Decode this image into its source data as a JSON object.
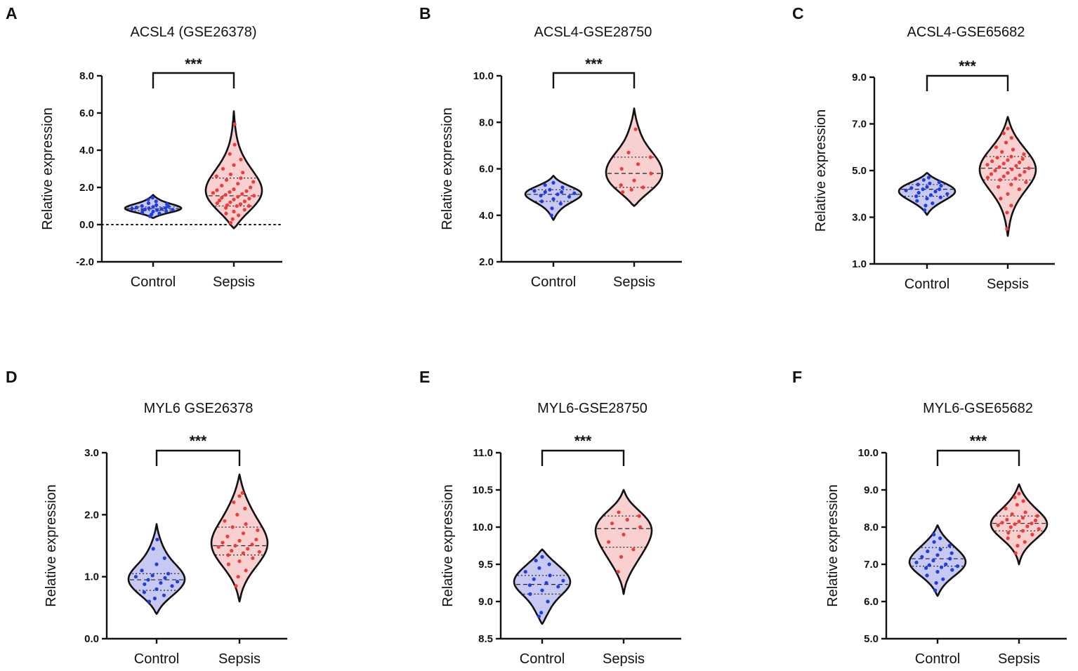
{
  "figure": {
    "panel_count": 6
  },
  "chart_data": [
    {
      "type": "violin",
      "panel": "A",
      "title": "ACSL4 (GSE26378)",
      "ylabel": "Relative expression",
      "ylim": [
        -2.0,
        8.0
      ],
      "yticks": [
        "-2.0",
        "0.0",
        "2.0",
        "4.0",
        "6.0",
        "8.0"
      ],
      "reference_line": 0.0,
      "categories": [
        "Control",
        "Sepsis"
      ],
      "significance": "***",
      "series": [
        {
          "name": "Control",
          "color": "#1f3de0",
          "fill": "#c7c9f2",
          "min": 0.35,
          "max": 1.6,
          "median": 0.85,
          "q1": 0.75,
          "q3": 0.95,
          "points": [
            0.45,
            0.55,
            0.6,
            0.65,
            0.7,
            0.72,
            0.75,
            0.78,
            0.8,
            0.82,
            0.84,
            0.86,
            0.88,
            0.9,
            0.92,
            0.95,
            0.98,
            1.0,
            1.05,
            1.1,
            1.15,
            1.25,
            1.35,
            1.45
          ]
        },
        {
          "name": "Sepsis",
          "color": "#ee3b3b",
          "fill": "#f9d0d0",
          "min": -0.2,
          "max": 6.1,
          "median": 1.55,
          "q1": 1.0,
          "q3": 2.5,
          "points": [
            0.1,
            0.3,
            0.5,
            0.6,
            0.7,
            0.8,
            0.9,
            1.0,
            1.0,
            1.05,
            1.1,
            1.15,
            1.2,
            1.25,
            1.3,
            1.35,
            1.4,
            1.45,
            1.5,
            1.55,
            1.6,
            1.65,
            1.7,
            1.75,
            1.8,
            1.85,
            1.9,
            2.0,
            2.1,
            2.2,
            2.3,
            2.4,
            2.5,
            2.6,
            2.7,
            2.8,
            3.0,
            3.2,
            3.5,
            3.8,
            4.3,
            5.4
          ]
        }
      ]
    },
    {
      "type": "violin",
      "panel": "B",
      "title": "ACSL4-GSE28750",
      "ylabel": "Relative expression",
      "ylim": [
        2.0,
        10.0
      ],
      "yticks": [
        "2.0",
        "4.0",
        "6.0",
        "8.0",
        "10.0"
      ],
      "categories": [
        "Control",
        "Sepsis"
      ],
      "significance": "***",
      "series": [
        {
          "name": "Control",
          "color": "#1f3de0",
          "fill": "#c7c9f2",
          "min": 3.8,
          "max": 5.7,
          "median": 4.9,
          "q1": 4.6,
          "q3": 5.1,
          "points": [
            4.0,
            4.3,
            4.5,
            4.6,
            4.7,
            4.8,
            4.85,
            4.9,
            4.95,
            5.0,
            5.0,
            5.05,
            5.1,
            5.2,
            5.3,
            5.4
          ]
        },
        {
          "name": "Sepsis",
          "color": "#ee3b3b",
          "fill": "#f9d0d0",
          "min": 4.4,
          "max": 8.6,
          "median": 5.8,
          "q1": 5.2,
          "q3": 6.5,
          "points": [
            5.0,
            5.1,
            5.2,
            5.3,
            5.5,
            5.8,
            6.0,
            6.2,
            6.5,
            6.7,
            7.7
          ]
        }
      ]
    },
    {
      "type": "violin",
      "panel": "C",
      "title": "ACSL4-GSE65682",
      "ylabel": "Relative expression",
      "ylim": [
        1.0,
        9.0
      ],
      "yticks": [
        "1.0",
        "3.0",
        "5.0",
        "7.0",
        "9.0"
      ],
      "categories": [
        "Control",
        "Sepsis"
      ],
      "significance": "***",
      "series": [
        {
          "name": "Control",
          "color": "#1f3de0",
          "fill": "#c7c9f2",
          "min": 3.1,
          "max": 4.9,
          "median": 4.2,
          "q1": 3.9,
          "q3": 4.4,
          "points": [
            3.3,
            3.5,
            3.6,
            3.7,
            3.8,
            3.85,
            3.9,
            3.95,
            4.0,
            4.05,
            4.1,
            4.15,
            4.2,
            4.2,
            4.25,
            4.3,
            4.35,
            4.4,
            4.45,
            4.5,
            4.6,
            4.7
          ]
        },
        {
          "name": "Sepsis",
          "color": "#ee3b3b",
          "fill": "#f9d0d0",
          "min": 2.2,
          "max": 7.3,
          "median": 5.1,
          "q1": 4.6,
          "q3": 5.6,
          "points": [
            2.5,
            3.2,
            3.5,
            3.8,
            4.0,
            4.2,
            4.3,
            4.4,
            4.5,
            4.6,
            4.65,
            4.7,
            4.75,
            4.8,
            4.85,
            4.9,
            4.95,
            5.0,
            5.05,
            5.1,
            5.15,
            5.2,
            5.25,
            5.3,
            5.35,
            5.4,
            5.45,
            5.5,
            5.55,
            5.6,
            5.7,
            5.8,
            5.9,
            6.0,
            6.2,
            6.4,
            6.6,
            6.8
          ]
        }
      ]
    },
    {
      "type": "violin",
      "panel": "D",
      "title": "MYL6 GSE26378",
      "ylabel": "Relative expression",
      "ylim": [
        0.0,
        3.0
      ],
      "yticks": [
        "0.0",
        "1.0",
        "2.0",
        "3.0"
      ],
      "categories": [
        "Control",
        "Sepsis"
      ],
      "significance": "***",
      "series": [
        {
          "name": "Control",
          "color": "#1f3de0",
          "fill": "#c7c9f2",
          "min": 0.4,
          "max": 1.85,
          "median": 0.95,
          "q1": 0.78,
          "q3": 1.05,
          "points": [
            0.6,
            0.65,
            0.7,
            0.75,
            0.8,
            0.85,
            0.88,
            0.9,
            0.92,
            0.95,
            0.98,
            1.0,
            1.02,
            1.05,
            1.1,
            1.2,
            1.3,
            1.45,
            1.6
          ]
        },
        {
          "name": "Sepsis",
          "color": "#ee3b3b",
          "fill": "#f9d0d0",
          "min": 0.6,
          "max": 2.65,
          "median": 1.5,
          "q1": 1.35,
          "q3": 1.8,
          "points": [
            0.85,
            1.0,
            1.1,
            1.2,
            1.25,
            1.3,
            1.35,
            1.38,
            1.4,
            1.42,
            1.45,
            1.48,
            1.5,
            1.52,
            1.55,
            1.58,
            1.6,
            1.65,
            1.7,
            1.75,
            1.8,
            1.85,
            1.9,
            2.0,
            2.1,
            2.2,
            2.3,
            2.35
          ]
        }
      ]
    },
    {
      "type": "violin",
      "panel": "E",
      "title": "MYL6-GSE28750",
      "ylabel": "Relative expression",
      "ylim": [
        8.5,
        11.0
      ],
      "yticks": [
        "8.5",
        "9.0",
        "9.5",
        "10.0",
        "10.5",
        "11.0"
      ],
      "categories": [
        "Control",
        "Sepsis"
      ],
      "significance": "***",
      "series": [
        {
          "name": "Control",
          "color": "#1f3de0",
          "fill": "#c7c9f2",
          "min": 8.7,
          "max": 9.7,
          "median": 9.23,
          "q1": 9.1,
          "q3": 9.35,
          "points": [
            8.8,
            8.85,
            9.0,
            9.1,
            9.15,
            9.2,
            9.22,
            9.25,
            9.28,
            9.3,
            9.35,
            9.4,
            9.45,
            9.5,
            9.55,
            9.6
          ]
        },
        {
          "name": "Sepsis",
          "color": "#ee3b3b",
          "fill": "#f9d0d0",
          "min": 9.1,
          "max": 10.5,
          "median": 9.98,
          "q1": 9.73,
          "q3": 10.15,
          "points": [
            9.4,
            9.6,
            9.7,
            9.8,
            9.9,
            10.0,
            10.05,
            10.1,
            10.15,
            10.2
          ]
        }
      ]
    },
    {
      "type": "violin",
      "panel": "F",
      "title": "MYL6-GSE65682",
      "ylabel": "Relative expression",
      "ylim": [
        5.0,
        10.0
      ],
      "yticks": [
        "5.0",
        "6.0",
        "7.0",
        "8.0",
        "9.0",
        "10.0"
      ],
      "categories": [
        "Control",
        "Sepsis"
      ],
      "significance": "***",
      "series": [
        {
          "name": "Control",
          "color": "#1f3de0",
          "fill": "#c7c9f2",
          "min": 6.15,
          "max": 8.05,
          "median": 7.15,
          "q1": 6.95,
          "q3": 7.45,
          "points": [
            6.3,
            6.5,
            6.6,
            6.7,
            6.8,
            6.85,
            6.9,
            6.92,
            6.95,
            6.98,
            7.0,
            7.05,
            7.1,
            7.15,
            7.2,
            7.25,
            7.3,
            7.35,
            7.4,
            7.5,
            7.6,
            7.7,
            7.8
          ]
        },
        {
          "name": "Sepsis",
          "color": "#ee3b3b",
          "fill": "#f9d0d0",
          "min": 7.0,
          "max": 9.15,
          "median": 8.1,
          "q1": 7.9,
          "q3": 8.3,
          "points": [
            7.3,
            7.5,
            7.6,
            7.7,
            7.75,
            7.8,
            7.85,
            7.9,
            7.95,
            8.0,
            8.02,
            8.05,
            8.08,
            8.1,
            8.12,
            8.15,
            8.18,
            8.2,
            8.25,
            8.3,
            8.35,
            8.4,
            8.5,
            8.6,
            8.7,
            8.8,
            8.9
          ]
        }
      ]
    }
  ]
}
